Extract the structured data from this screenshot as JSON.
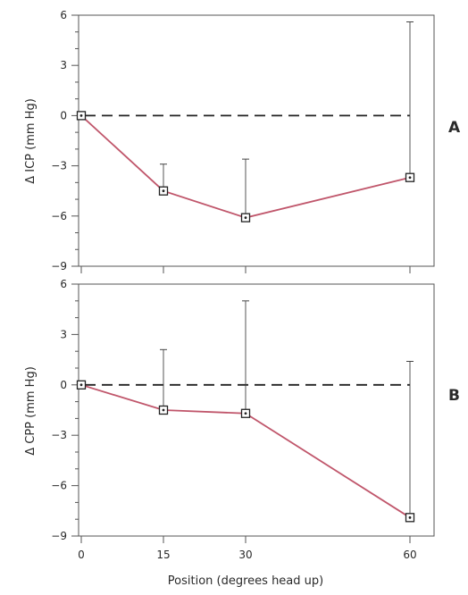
{
  "chart_data": [
    {
      "type": "line",
      "panel_label": "A",
      "ylabel": "Δ ICP (mm Hg)",
      "xlabel": "",
      "x": [
        0,
        15,
        30,
        60
      ],
      "ylim": [
        -9,
        6
      ],
      "yticks": [
        6,
        3,
        0,
        -3,
        -6,
        -9
      ],
      "ytick_labels": [
        "6",
        "3",
        "0",
        "−3",
        "−6",
        "−9"
      ],
      "series": [
        {
          "values": [
            0,
            -4.5,
            -6.1,
            -3.7
          ],
          "error_upper": [
            0,
            -2.9,
            -2.6,
            5.6
          ]
        }
      ],
      "reference_line": {
        "y": 0,
        "style": "dashed"
      },
      "line_color": "#c0566b"
    },
    {
      "type": "line",
      "panel_label": "B",
      "ylabel": "Δ CPP (mm Hg)",
      "xlabel": "Position (degrees head up)",
      "x": [
        0,
        15,
        30,
        60
      ],
      "xtick_labels": [
        "0",
        "15",
        "30",
        "60"
      ],
      "ylim": [
        -9,
        6
      ],
      "yticks": [
        6,
        3,
        0,
        -3,
        -6,
        -9
      ],
      "ytick_labels": [
        "6",
        "3",
        "0",
        "−3",
        "−6",
        "−9"
      ],
      "series": [
        {
          "values": [
            0,
            -1.5,
            -1.7,
            -7.9
          ],
          "error_upper": [
            0,
            2.1,
            5.0,
            1.4
          ]
        }
      ],
      "reference_line": {
        "y": 0,
        "style": "dashed"
      },
      "line_color": "#c0566b"
    }
  ]
}
